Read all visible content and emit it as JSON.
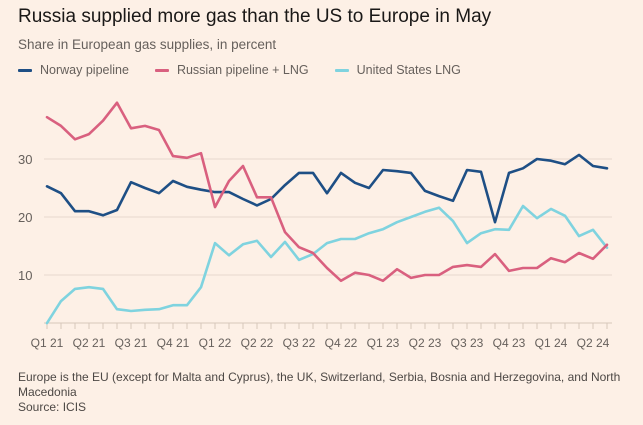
{
  "title": "Russia supplied more gas than the US to Europe in May",
  "subtitle": "Share in European gas supplies, in percent",
  "footer": {
    "note": "Europe is the EU (except for Malta and Cyprus), the UK, Switzerland, Serbia, Bosnia and Herzegovina, and North Macedonia",
    "source": "Source: ICIS"
  },
  "chart_data": {
    "type": "line",
    "title": "Russia supplied more gas than the US to Europe in May",
    "subtitle": "Share in European gas supplies, in percent",
    "xlabel": "",
    "ylabel": "",
    "ylim": [
      1.7,
      41
    ],
    "yticks": [
      10,
      20,
      30
    ],
    "grid": true,
    "legend_position": "top-left",
    "x": [
      "Jan 21",
      "Feb 21",
      "Mar 21",
      "Apr 21",
      "May 21",
      "Jun 21",
      "Jul 21",
      "Aug 21",
      "Sep 21",
      "Oct 21",
      "Nov 21",
      "Dec 21",
      "Jan 22",
      "Feb 22",
      "Mar 22",
      "Apr 22",
      "May 22",
      "Jun 22",
      "Jul 22",
      "Aug 22",
      "Sep 22",
      "Oct 22",
      "Nov 22",
      "Dec 22",
      "Jan 23",
      "Feb 23",
      "Mar 23",
      "Apr 23",
      "May 23",
      "Jun 23",
      "Jul 23",
      "Aug 23",
      "Sep 23",
      "Oct 23",
      "Nov 23",
      "Dec 23",
      "Jan 24",
      "Feb 24",
      "Mar 24",
      "Apr 24",
      "May 24"
    ],
    "xtick_labels": [
      "Q1 21",
      "Q2 21",
      "Q3 21",
      "Q4 21",
      "Q1 22",
      "Q2 22",
      "Q3 22",
      "Q4 22",
      "Q1 23",
      "Q2 23",
      "Q3 23",
      "Q4 23",
      "Q1 24",
      "Q2 24"
    ],
    "series": [
      {
        "name": "Norway pipeline",
        "color": "#1e4f85",
        "values": [
          25.3,
          24.1,
          21.0,
          21.0,
          20.3,
          21.2,
          26.0,
          25.0,
          24.1,
          26.2,
          25.2,
          24.7,
          24.3,
          24.3,
          23.1,
          22.0,
          23.1,
          25.5,
          27.6,
          27.6,
          24.1,
          27.6,
          25.9,
          25.0,
          28.1,
          27.9,
          27.6,
          24.5,
          23.6,
          22.8,
          28.1,
          27.8,
          19.1,
          27.6,
          28.4,
          30.0,
          29.7,
          29.1,
          30.7,
          28.8,
          28.4
        ]
      },
      {
        "name": "Russian pipeline + LNG",
        "color": "#d9607f",
        "values": [
          37.2,
          35.7,
          33.4,
          34.3,
          36.6,
          39.7,
          35.3,
          35.7,
          35.0,
          30.5,
          30.2,
          31.0,
          21.7,
          26.2,
          28.8,
          23.4,
          23.4,
          17.4,
          14.8,
          13.8,
          11.2,
          9.0,
          10.4,
          10.0,
          9.0,
          11.0,
          9.5,
          10.0,
          10.0,
          11.4,
          11.7,
          11.4,
          13.6,
          10.7,
          11.2,
          11.2,
          12.9,
          12.2,
          13.8,
          12.8,
          15.2
        ]
      },
      {
        "name": "United States LNG",
        "color": "#7fd3df",
        "values": [
          1.7,
          5.5,
          7.6,
          7.9,
          7.6,
          4.1,
          3.8,
          4.0,
          4.1,
          4.8,
          4.8,
          7.9,
          15.5,
          13.4,
          15.3,
          15.9,
          13.1,
          15.7,
          12.6,
          13.6,
          15.5,
          16.2,
          16.2,
          17.2,
          17.9,
          19.1,
          20.0,
          20.9,
          21.6,
          19.3,
          15.5,
          17.2,
          17.9,
          17.8,
          21.9,
          19.8,
          21.4,
          20.2,
          16.7,
          17.8,
          14.7
        ]
      }
    ]
  }
}
